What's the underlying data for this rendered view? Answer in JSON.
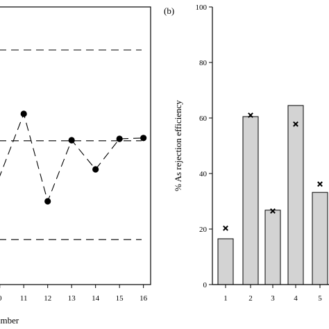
{
  "chart_data": [
    {
      "type": "line",
      "panel_label": "",
      "xlabel": "umber",
      "x": [
        11,
        12,
        13,
        14,
        15,
        16
      ],
      "y": [
        61.5,
        30.0,
        52.0,
        41.5,
        52.5,
        52.8
      ],
      "x_ticks": [
        "0",
        "11",
        "12",
        "13",
        "14",
        "15",
        "16"
      ],
      "xlim": [
        9.95,
        16.3
      ],
      "ylim": [
        0,
        100
      ],
      "reference_lines": [
        84.5,
        51.8,
        16.2
      ],
      "line_style": "long-dash",
      "marker": "filled-circle"
    },
    {
      "type": "bar",
      "panel_label": "(b)",
      "ylabel": "% As rejection efficiency",
      "categories": [
        "1",
        "2",
        "3",
        "4",
        "5"
      ],
      "values": [
        16.5,
        60.5,
        26.8,
        64.5,
        33.2
      ],
      "markers": [
        20.3,
        61.0,
        26.5,
        57.8,
        36.2
      ],
      "marker_symbol": "×",
      "y_ticks": [
        "0",
        "20",
        "40",
        "60",
        "80",
        "100"
      ],
      "ylim": [
        0,
        100
      ],
      "bar_color": "#d3d3d3"
    }
  ]
}
